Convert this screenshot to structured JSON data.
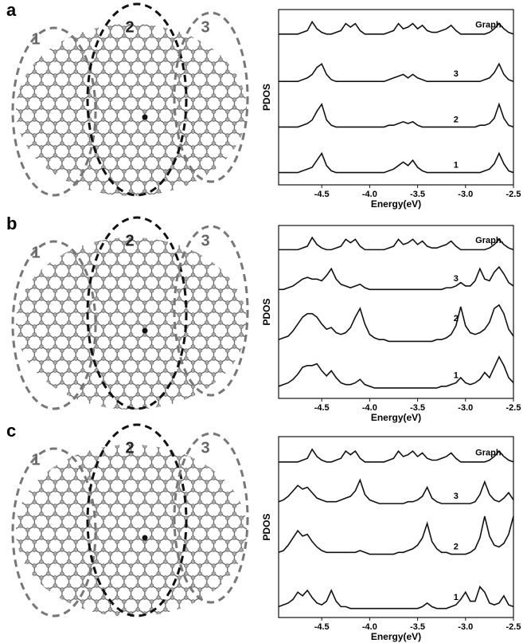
{
  "panel_labels": [
    "a",
    "b",
    "c"
  ],
  "region_labels": [
    [
      "1",
      "2",
      "3"
    ],
    [
      "1",
      "2",
      "3"
    ],
    [
      "1",
      "2",
      "3"
    ]
  ],
  "chart_data": [
    {
      "type": "line",
      "x_label": "Energy(eV)",
      "y_label": "PDOS",
      "color": "#111111",
      "xlim": [
        -4.95,
        -2.5
      ],
      "xticks": [
        -4.5,
        {
          "value": -4,
          "label": "-4.0"
        },
        -3.5,
        {
          "value": -3,
          "label": "-3.0"
        },
        -2.5
      ],
      "ylim": [
        0,
        10
      ],
      "x": [
        -4.95,
        -4.9,
        -4.85,
        -4.8,
        -4.75,
        -4.7,
        -4.65,
        -4.6,
        -4.55,
        -4.5,
        -4.45,
        -4.4,
        -4.35,
        -4.3,
        -4.25,
        -4.2,
        -4.15,
        -4.1,
        -4.05,
        -4.0,
        -3.95,
        -3.9,
        -3.85,
        -3.8,
        -3.75,
        -3.7,
        -3.65,
        -3.6,
        -3.55,
        -3.5,
        -3.45,
        -3.4,
        -3.35,
        -3.3,
        -3.25,
        -3.2,
        -3.15,
        -3.1,
        -3.05,
        -3.0,
        -2.95,
        -2.9,
        -2.85,
        -2.8,
        -2.75,
        -2.7,
        -2.65,
        -2.6,
        -2.55,
        -2.5
      ],
      "series": [
        {
          "name": "Graph.",
          "values": [
            8.6,
            8.6,
            8.6,
            8.6,
            8.6,
            8.7,
            8.8,
            9.3,
            8.9,
            8.7,
            8.6,
            8.6,
            8.7,
            8.8,
            9.2,
            9.0,
            9.2,
            8.8,
            8.6,
            8.6,
            8.6,
            8.6,
            8.6,
            8.7,
            8.8,
            9.2,
            8.9,
            9.0,
            9.2,
            8.9,
            9.1,
            8.8,
            8.7,
            8.7,
            8.8,
            8.9,
            9.1,
            8.8,
            8.6,
            8.6,
            8.6,
            8.6,
            8.6,
            8.6,
            8.7,
            8.9,
            9.2,
            8.9,
            8.7,
            8.6
          ]
        },
        {
          "name": "3",
          "values": [
            5.9,
            5.9,
            5.9,
            5.9,
            5.9,
            6.0,
            6.1,
            6.3,
            6.7,
            6.9,
            6.3,
            6.0,
            5.9,
            5.9,
            5.9,
            5.9,
            5.9,
            5.9,
            5.9,
            5.9,
            5.9,
            5.9,
            5.9,
            6.0,
            6.1,
            6.2,
            6.3,
            6.1,
            6.3,
            6.1,
            6.0,
            5.9,
            5.9,
            5.9,
            5.9,
            5.9,
            5.9,
            5.9,
            5.9,
            5.9,
            5.9,
            5.9,
            5.9,
            6.0,
            6.1,
            6.4,
            6.9,
            6.3,
            6.0,
            5.9
          ]
        },
        {
          "name": "2",
          "values": [
            3.3,
            3.3,
            3.3,
            3.3,
            3.3,
            3.4,
            3.5,
            3.7,
            4.2,
            4.6,
            3.7,
            3.4,
            3.3,
            3.3,
            3.3,
            3.3,
            3.3,
            3.3,
            3.3,
            3.3,
            3.3,
            3.3,
            3.3,
            3.4,
            3.4,
            3.5,
            3.6,
            3.5,
            3.6,
            3.4,
            3.3,
            3.3,
            3.3,
            3.3,
            3.3,
            3.3,
            3.3,
            3.3,
            3.3,
            3.3,
            3.3,
            3.3,
            3.4,
            3.4,
            3.5,
            3.8,
            4.6,
            3.8,
            3.4,
            3.3
          ]
        },
        {
          "name": "1",
          "values": [
            0.7,
            0.7,
            0.7,
            0.7,
            0.7,
            0.8,
            0.9,
            1.0,
            1.4,
            1.8,
            1.1,
            0.8,
            0.7,
            0.7,
            0.7,
            0.7,
            0.7,
            0.7,
            0.7,
            0.7,
            0.7,
            0.7,
            0.7,
            0.8,
            0.9,
            1.1,
            1.3,
            1.1,
            1.4,
            1.0,
            0.8,
            0.7,
            0.7,
            0.7,
            0.7,
            0.7,
            0.7,
            0.7,
            0.7,
            0.7,
            0.7,
            0.7,
            0.7,
            0.8,
            0.9,
            1.2,
            1.8,
            1.2,
            0.8,
            0.7
          ]
        }
      ]
    },
    {
      "type": "line",
      "x_label": "Energy(eV)",
      "y_label": "PDOS",
      "color": "#111111",
      "xlim": [
        -4.95,
        -2.5
      ],
      "xticks": [
        -4.5,
        {
          "value": -4,
          "label": "-4.0"
        },
        -3.5,
        {
          "value": -3,
          "label": "-3.0"
        },
        -2.5
      ],
      "ylim": [
        0,
        10
      ],
      "x": [
        -4.95,
        -4.9,
        -4.85,
        -4.8,
        -4.75,
        -4.7,
        -4.65,
        -4.6,
        -4.55,
        -4.5,
        -4.45,
        -4.4,
        -4.35,
        -4.3,
        -4.25,
        -4.2,
        -4.15,
        -4.1,
        -4.05,
        -4.0,
        -3.95,
        -3.9,
        -3.85,
        -3.8,
        -3.75,
        -3.7,
        -3.65,
        -3.6,
        -3.55,
        -3.5,
        -3.45,
        -3.4,
        -3.35,
        -3.3,
        -3.25,
        -3.2,
        -3.15,
        -3.1,
        -3.05,
        -3.0,
        -2.95,
        -2.9,
        -2.85,
        -2.8,
        -2.75,
        -2.7,
        -2.65,
        -2.6,
        -2.55,
        -2.5
      ],
      "series": [
        {
          "name": "Graph.",
          "values": [
            8.6,
            8.6,
            8.6,
            8.6,
            8.6,
            8.7,
            8.8,
            9.3,
            8.9,
            8.7,
            8.6,
            8.6,
            8.7,
            8.8,
            9.2,
            9.0,
            9.2,
            8.8,
            8.6,
            8.6,
            8.6,
            8.6,
            8.6,
            8.7,
            8.8,
            9.2,
            8.9,
            9.0,
            9.2,
            8.9,
            9.1,
            8.8,
            8.7,
            8.7,
            8.8,
            8.9,
            9.1,
            8.8,
            8.6,
            8.6,
            8.6,
            8.6,
            8.6,
            8.6,
            8.7,
            8.9,
            9.2,
            8.9,
            8.7,
            8.6
          ]
        },
        {
          "name": "3",
          "values": [
            6.3,
            6.3,
            6.4,
            6.5,
            6.7,
            6.9,
            7.0,
            6.9,
            6.9,
            6.8,
            7.1,
            7.5,
            6.9,
            6.6,
            6.5,
            6.4,
            6.5,
            6.6,
            6.4,
            6.3,
            6.3,
            6.3,
            6.3,
            6.3,
            6.3,
            6.3,
            6.3,
            6.3,
            6.3,
            6.3,
            6.3,
            6.3,
            6.3,
            6.3,
            6.3,
            6.4,
            6.4,
            6.5,
            6.7,
            6.5,
            6.5,
            6.8,
            7.5,
            6.9,
            6.8,
            7.3,
            7.6,
            7.2,
            6.7,
            6.5
          ]
        },
        {
          "name": "2",
          "values": [
            3.4,
            3.5,
            3.6,
            3.9,
            4.3,
            4.7,
            4.9,
            4.9,
            4.7,
            4.3,
            4.0,
            4.1,
            3.8,
            3.7,
            3.8,
            4.1,
            4.7,
            5.2,
            4.3,
            3.7,
            3.5,
            3.4,
            3.4,
            3.3,
            3.3,
            3.3,
            3.3,
            3.3,
            3.3,
            3.3,
            3.3,
            3.3,
            3.3,
            3.4,
            3.4,
            3.5,
            3.7,
            4.2,
            5.3,
            4.2,
            3.8,
            3.7,
            3.8,
            4.0,
            4.4,
            5.2,
            5.4,
            4.9,
            4.0,
            3.6
          ]
        },
        {
          "name": "1",
          "values": [
            0.7,
            0.8,
            0.9,
            1.1,
            1.4,
            1.8,
            1.9,
            1.9,
            2.0,
            1.6,
            1.3,
            1.6,
            1.2,
            0.9,
            0.8,
            0.8,
            0.9,
            1.1,
            0.8,
            0.7,
            0.6,
            0.6,
            0.6,
            0.6,
            0.6,
            0.6,
            0.6,
            0.6,
            0.6,
            0.6,
            0.6,
            0.6,
            0.6,
            0.6,
            0.7,
            0.7,
            0.8,
            0.9,
            1.2,
            0.9,
            0.8,
            0.9,
            1.1,
            1.5,
            1.2,
            1.8,
            2.4,
            1.9,
            1.2,
            0.9
          ]
        }
      ]
    },
    {
      "type": "line",
      "x_label": "Energy(eV)",
      "y_label": "PDOS",
      "color": "#111111",
      "xlim": [
        -4.95,
        -2.5
      ],
      "xticks": [
        -4.5,
        {
          "value": -4,
          "label": "-4.0"
        },
        -3.5,
        {
          "value": -3,
          "label": "-3.0"
        },
        -2.5
      ],
      "ylim": [
        0,
        10
      ],
      "x": [
        -4.95,
        -4.9,
        -4.85,
        -4.8,
        -4.75,
        -4.7,
        -4.65,
        -4.6,
        -4.55,
        -4.5,
        -4.45,
        -4.4,
        -4.35,
        -4.3,
        -4.25,
        -4.2,
        -4.15,
        -4.1,
        -4.05,
        -4.0,
        -3.95,
        -3.9,
        -3.85,
        -3.8,
        -3.75,
        -3.7,
        -3.65,
        -3.6,
        -3.55,
        -3.5,
        -3.45,
        -3.4,
        -3.35,
        -3.3,
        -3.25,
        -3.2,
        -3.15,
        -3.1,
        -3.05,
        -3.0,
        -2.95,
        -2.9,
        -2.85,
        -2.8,
        -2.75,
        -2.7,
        -2.65,
        -2.6,
        -2.55,
        -2.5
      ],
      "series": [
        {
          "name": "Graph.",
          "values": [
            8.6,
            8.6,
            8.6,
            8.6,
            8.6,
            8.7,
            8.8,
            9.3,
            8.9,
            8.7,
            8.6,
            8.6,
            8.7,
            8.8,
            9.2,
            9.0,
            9.2,
            8.8,
            8.6,
            8.6,
            8.6,
            8.6,
            8.6,
            8.7,
            8.8,
            9.2,
            8.9,
            9.0,
            9.2,
            8.9,
            9.1,
            8.8,
            8.7,
            8.7,
            8.8,
            8.9,
            9.1,
            8.8,
            8.6,
            8.6,
            8.6,
            8.6,
            8.6,
            8.6,
            8.7,
            8.9,
            9.2,
            8.9,
            8.7,
            8.6
          ]
        },
        {
          "name": "3",
          "values": [
            6.4,
            6.5,
            6.7,
            7.0,
            7.3,
            7.1,
            7.2,
            6.9,
            6.6,
            6.5,
            6.4,
            6.4,
            6.4,
            6.5,
            6.6,
            6.7,
            7.0,
            7.6,
            6.8,
            6.5,
            6.4,
            6.3,
            6.3,
            6.3,
            6.3,
            6.3,
            6.3,
            6.4,
            6.4,
            6.5,
            6.7,
            7.2,
            6.6,
            6.4,
            6.3,
            6.3,
            6.3,
            6.3,
            6.3,
            6.3,
            6.3,
            6.4,
            6.8,
            7.5,
            6.8,
            6.5,
            6.4,
            6.6,
            6.9,
            6.5
          ]
        },
        {
          "name": "2",
          "values": [
            3.6,
            3.7,
            4.0,
            4.4,
            4.8,
            4.5,
            4.6,
            4.2,
            3.9,
            3.7,
            3.6,
            3.6,
            3.6,
            3.6,
            3.6,
            3.6,
            3.6,
            3.7,
            3.6,
            3.5,
            3.5,
            3.5,
            3.5,
            3.5,
            3.5,
            3.6,
            3.6,
            3.7,
            3.8,
            4.0,
            4.4,
            5.2,
            4.2,
            3.8,
            3.6,
            3.6,
            3.5,
            3.5,
            3.5,
            3.5,
            3.6,
            3.8,
            4.4,
            5.6,
            4.5,
            4.0,
            3.9,
            4.1,
            4.6,
            5.6
          ]
        },
        {
          "name": "1",
          "values": [
            0.6,
            0.7,
            0.8,
            1.0,
            1.4,
            1.2,
            1.5,
            1.1,
            0.8,
            0.7,
            0.9,
            1.5,
            0.9,
            0.6,
            0.6,
            0.5,
            0.5,
            0.5,
            0.5,
            0.5,
            0.5,
            0.5,
            0.5,
            0.5,
            0.5,
            0.5,
            0.5,
            0.5,
            0.5,
            0.5,
            0.6,
            0.8,
            0.6,
            0.5,
            0.5,
            0.5,
            0.6,
            0.7,
            1.0,
            1.4,
            0.9,
            0.9,
            1.7,
            1.4,
            0.8,
            0.7,
            0.8,
            1.2,
            0.7,
            0.6
          ]
        }
      ]
    }
  ]
}
